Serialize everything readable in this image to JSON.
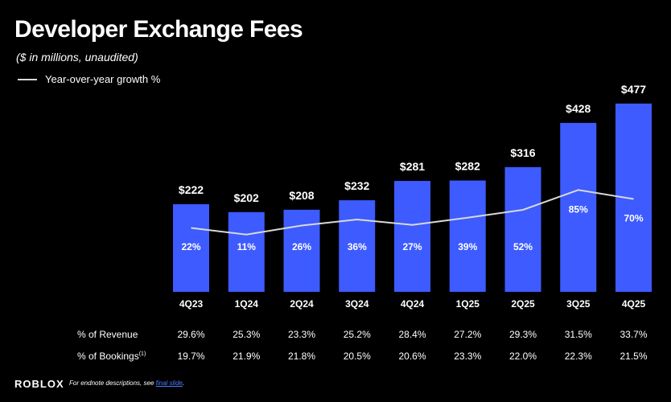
{
  "header": {
    "title": "Developer Exchange Fees",
    "subtitle": "($ in millions, unaudited)"
  },
  "legend": {
    "label": "Year-over-year growth %"
  },
  "chart_data": {
    "type": "bar",
    "categories": [
      "4Q23",
      "1Q24",
      "2Q24",
      "3Q24",
      "4Q24",
      "1Q25",
      "2Q25",
      "3Q25",
      "4Q25"
    ],
    "values": [
      222,
      202,
      208,
      232,
      281,
      282,
      316,
      428,
      477
    ],
    "value_labels": [
      "$222",
      "$202",
      "$208",
      "$232",
      "$281",
      "$282",
      "$316",
      "$428",
      "$477"
    ],
    "bar_color": "#3d5bff",
    "growth_line": {
      "name": "Year-over-year growth %",
      "values": [
        22,
        11,
        26,
        36,
        27,
        39,
        52,
        85,
        70
      ],
      "labels": [
        "22%",
        "11%",
        "26%",
        "36%",
        "27%",
        "39%",
        "52%",
        "85%",
        "70%"
      ],
      "color": "#d9d9d9"
    }
  },
  "table": {
    "revenue": {
      "label": "% of Revenue",
      "values": [
        "29.6%",
        "25.3%",
        "23.3%",
        "25.2%",
        "28.4%",
        "27.2%",
        "29.3%",
        "31.5%",
        "33.7%"
      ]
    },
    "bookings": {
      "label": "% of Bookings",
      "footnote": "(1)",
      "values": [
        "19.7%",
        "21.9%",
        "21.8%",
        "20.5%",
        "20.6%",
        "23.3%",
        "22.0%",
        "22.3%",
        "21.5%"
      ]
    }
  },
  "footer": {
    "logo": "ROBLOX",
    "note": "For endnote descriptions, see ",
    "link": "final slide",
    "note_end": "."
  }
}
